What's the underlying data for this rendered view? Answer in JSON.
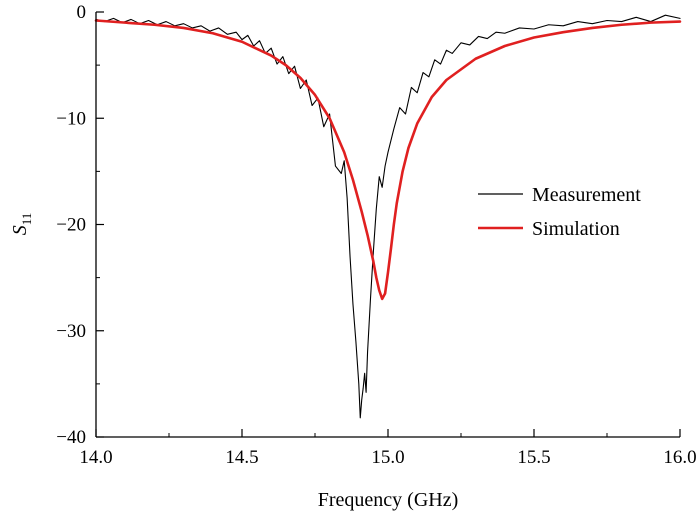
{
  "chart_data": {
    "type": "line",
    "title": "",
    "xlabel": "Frequency (GHz)",
    "ylabel": {
      "main": "S",
      "sub": "11"
    },
    "xlim": [
      14.0,
      16.0
    ],
    "ylim": [
      -40,
      0
    ],
    "xticks": [
      14.0,
      14.5,
      15.0,
      15.5,
      16.0
    ],
    "xtick_labels": [
      "14.0",
      "14.5",
      "15.0",
      "15.5",
      "16.0"
    ],
    "yticks": [
      0,
      -10,
      -20,
      -30,
      -40
    ],
    "ytick_labels": [
      "0",
      "−10",
      "−20",
      "−30",
      "−40"
    ],
    "grid": false,
    "legend_position": "right",
    "series": [
      {
        "name": "Measurement",
        "color": "#000000",
        "x": [
          14.0,
          14.03,
          14.06,
          14.09,
          14.12,
          14.15,
          14.18,
          14.21,
          14.24,
          14.27,
          14.3,
          14.33,
          14.36,
          14.39,
          14.42,
          14.45,
          14.48,
          14.5,
          14.52,
          14.54,
          14.56,
          14.58,
          14.6,
          14.62,
          14.64,
          14.66,
          14.68,
          14.7,
          14.72,
          14.74,
          14.76,
          14.78,
          14.8,
          14.82,
          14.84,
          14.85,
          14.86,
          14.87,
          14.88,
          14.89,
          14.9,
          14.905,
          14.91,
          14.915,
          14.92,
          14.925,
          14.93,
          14.94,
          14.95,
          14.96,
          14.97,
          14.98,
          14.99,
          15.0,
          15.02,
          15.04,
          15.06,
          15.08,
          15.1,
          15.12,
          15.14,
          15.16,
          15.18,
          15.2,
          15.22,
          15.25,
          15.28,
          15.31,
          15.34,
          15.37,
          15.4,
          15.45,
          15.5,
          15.55,
          15.6,
          15.65,
          15.7,
          15.75,
          15.8,
          15.85,
          15.9,
          15.95,
          16.0
        ],
        "y": [
          -0.7,
          -0.9,
          -0.6,
          -1.0,
          -0.7,
          -1.1,
          -0.8,
          -1.2,
          -0.9,
          -1.3,
          -1.1,
          -1.5,
          -1.3,
          -1.8,
          -1.5,
          -2.1,
          -1.9,
          -2.6,
          -2.2,
          -3.2,
          -2.7,
          -3.9,
          -3.4,
          -4.9,
          -4.2,
          -5.8,
          -5.1,
          -7.2,
          -6.4,
          -8.8,
          -8.1,
          -10.8,
          -9.6,
          -14.5,
          -15.2,
          -14.0,
          -17.5,
          -23.0,
          -27.5,
          -31.0,
          -35.0,
          -38.2,
          -36.5,
          -35.4,
          -34.0,
          -35.8,
          -32.0,
          -27.0,
          -22.5,
          -18.5,
          -15.5,
          -16.5,
          -14.5,
          -13.2,
          -11.0,
          -9.0,
          -9.6,
          -7.1,
          -7.6,
          -5.7,
          -6.1,
          -4.5,
          -4.9,
          -3.6,
          -3.9,
          -2.9,
          -3.1,
          -2.3,
          -2.5,
          -1.9,
          -2.0,
          -1.5,
          -1.6,
          -1.2,
          -1.3,
          -0.9,
          -1.1,
          -0.8,
          -0.9,
          -0.5,
          -0.9,
          -0.3,
          -0.6
        ]
      },
      {
        "name": "Simulation",
        "color": "#e02020",
        "x": [
          14.0,
          14.1,
          14.2,
          14.3,
          14.4,
          14.5,
          14.6,
          14.65,
          14.7,
          14.75,
          14.8,
          14.85,
          14.88,
          14.91,
          14.93,
          14.95,
          14.96,
          14.97,
          14.98,
          14.99,
          15.0,
          15.01,
          15.02,
          15.03,
          15.05,
          15.07,
          15.1,
          15.15,
          15.2,
          15.3,
          15.4,
          15.5,
          15.6,
          15.7,
          15.8,
          15.9,
          16.0
        ],
        "y": [
          -0.8,
          -1.0,
          -1.2,
          -1.5,
          -2.0,
          -2.8,
          -4.1,
          -5.0,
          -6.2,
          -7.8,
          -10.0,
          -13.2,
          -15.8,
          -18.8,
          -21.0,
          -23.5,
          -25.0,
          -26.2,
          -27.0,
          -26.5,
          -24.5,
          -22.3,
          -20.0,
          -18.0,
          -15.0,
          -12.8,
          -10.5,
          -8.0,
          -6.4,
          -4.4,
          -3.2,
          -2.4,
          -1.9,
          -1.5,
          -1.2,
          -1.0,
          -0.9
        ]
      }
    ]
  }
}
